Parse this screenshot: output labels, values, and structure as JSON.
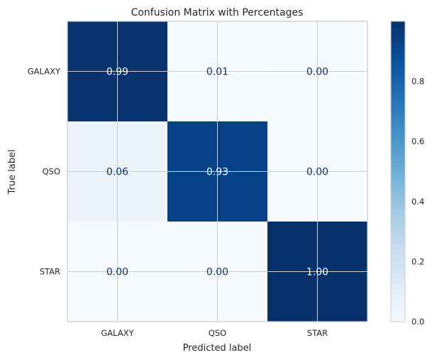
{
  "chart_data": {
    "type": "heatmap",
    "title": "Confusion Matrix with Percentages",
    "xlabel": "Predicted label",
    "ylabel": "True label",
    "x_categories": [
      "GALAXY",
      "QSO",
      "STAR"
    ],
    "y_categories": [
      "GALAXY",
      "QSO",
      "STAR"
    ],
    "values": [
      [
        0.99,
        0.01,
        0.0
      ],
      [
        0.06,
        0.93,
        0.0
      ],
      [
        0.0,
        0.0,
        1.0
      ]
    ],
    "cell_labels": [
      [
        "0.99",
        "0.01",
        "0.00"
      ],
      [
        "0.06",
        "0.93",
        "0.00"
      ],
      [
        "0.00",
        "0.00",
        "1.00"
      ]
    ],
    "colormap": "Blues",
    "colorbar": {
      "range": [
        0,
        1
      ],
      "ticks": [
        0.0,
        0.2,
        0.4,
        0.6,
        0.8
      ],
      "tick_labels": [
        "0.0",
        "0.2",
        "0.4",
        "0.6",
        "0.8"
      ]
    },
    "grid": true,
    "colors": {
      "low": "#f7fbff",
      "high": "#08306b",
      "text": "#08306b",
      "grid": "#cccccc"
    }
  }
}
